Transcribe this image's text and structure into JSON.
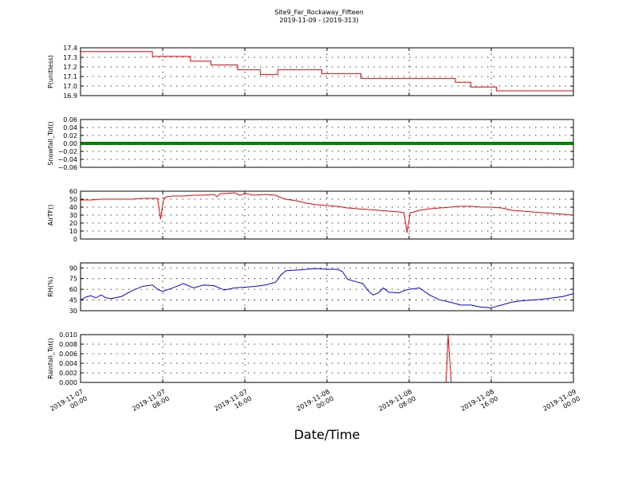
{
  "title_line1": "Site9_Far_Rockaway_Fifteen",
  "title_line2": "2019-11-09 - (2019-313)",
  "xlabel": "Date/Time",
  "x_ticks": [
    {
      "line1": "2019-11-07",
      "line2": "00:00"
    },
    {
      "line1": "2019-11-07",
      "line2": "08:00"
    },
    {
      "line1": "2019-11-07",
      "line2": "16:00"
    },
    {
      "line1": "2019-11-08",
      "line2": "00:00"
    },
    {
      "line1": "2019-11-08",
      "line2": "08:00"
    },
    {
      "line1": "2019-11-08",
      "line2": "16:00"
    },
    {
      "line1": "2019-11-09",
      "line2": "00:00"
    }
  ],
  "chart_data": [
    {
      "type": "line",
      "ylabel": "P(unitless)",
      "color": "#ff0000",
      "ylim": [
        16.9,
        17.4
      ],
      "yticks": [
        "16.9",
        "17.0",
        "17.1",
        "17.2",
        "17.3",
        "17.4"
      ],
      "x_range_hours": [
        0,
        48
      ],
      "x": [
        0,
        7,
        7,
        10.7,
        10.7,
        12.7,
        12.7,
        15.3,
        15.3,
        17.5,
        17.5,
        19.2,
        19.2,
        23.5,
        23.5,
        27.3,
        27.3,
        36.5,
        36.5,
        38,
        38,
        40.5,
        40.5,
        48
      ],
      "values": [
        17.36,
        17.36,
        17.31,
        17.31,
        17.26,
        17.26,
        17.22,
        17.22,
        17.17,
        17.17,
        17.12,
        17.12,
        17.17,
        17.17,
        17.13,
        17.13,
        17.08,
        17.08,
        17.04,
        17.04,
        16.99,
        16.99,
        16.95,
        16.95
      ]
    },
    {
      "type": "line",
      "ylabel": "Snowfall_Tot()",
      "color": "#008000",
      "ylim": [
        -0.06,
        0.06
      ],
      "yticks": [
        "−0.06",
        "−0.04",
        "−0.02",
        "0.00",
        "0.02",
        "0.04",
        "0.06"
      ],
      "x_range_hours": [
        0,
        48
      ],
      "x": [
        0,
        48
      ],
      "values": [
        0,
        0
      ]
    },
    {
      "type": "line",
      "ylabel": "AirTF()",
      "color": "#ff0000",
      "ylim": [
        0,
        60
      ],
      "yticks": [
        "0",
        "10",
        "20",
        "30",
        "40",
        "50",
        "60"
      ],
      "x_range_hours": [
        0,
        48
      ],
      "x": [
        0,
        1,
        2,
        3,
        4,
        5,
        6,
        7.5,
        7.8,
        8.1,
        8.4,
        9,
        10,
        11,
        12,
        13,
        13.3,
        13.6,
        14,
        15,
        15.5,
        16,
        17,
        18,
        19,
        19.5,
        20,
        21,
        22,
        23,
        24,
        25,
        26,
        27,
        28,
        29,
        30,
        31,
        31.5,
        31.8,
        32.1,
        32.5,
        33,
        34,
        35,
        36,
        37,
        38,
        39,
        40,
        41,
        42,
        43,
        44,
        45,
        46,
        47,
        48
      ],
      "values": [
        49,
        49,
        50,
        50,
        50,
        50,
        51,
        51,
        25,
        51,
        53,
        54,
        54,
        55,
        55,
        56,
        53,
        57,
        57,
        58,
        55,
        57,
        55,
        56,
        55,
        52,
        50,
        48,
        45,
        43,
        42,
        41,
        39,
        38,
        37,
        36,
        35,
        34,
        33,
        8,
        33,
        34,
        36,
        38,
        39,
        40,
        41,
        41,
        40,
        40,
        39,
        36,
        35,
        34,
        33,
        32,
        31,
        30
      ]
    },
    {
      "type": "line",
      "ylabel": "RH(%)",
      "color": "#0000ff",
      "ylim": [
        30,
        97
      ],
      "yticks": [
        "30",
        "45",
        "60",
        "75",
        "90"
      ],
      "x_range_hours": [
        0,
        48
      ],
      "x": [
        0,
        0.5,
        1,
        1.5,
        2,
        2.5,
        3,
        4,
        5,
        6,
        7,
        7.5,
        8,
        9,
        10,
        11,
        12,
        13,
        14,
        15,
        16,
        17,
        18,
        19,
        19.5,
        20,
        21,
        22,
        23,
        24,
        25,
        25.5,
        26,
        27,
        27.5,
        28,
        28.5,
        29,
        29.5,
        30,
        31,
        31.5,
        32,
        33,
        34,
        35,
        36,
        37,
        38,
        39,
        40,
        41,
        42,
        43,
        44,
        45,
        46,
        47,
        48
      ],
      "values": [
        45,
        49,
        51,
        48,
        52,
        48,
        47,
        50,
        58,
        64,
        66,
        60,
        57,
        62,
        68,
        62,
        66,
        65,
        59,
        62,
        63,
        64,
        66,
        70,
        80,
        86,
        87,
        88,
        89,
        88,
        88,
        85,
        74,
        70,
        68,
        58,
        52,
        55,
        62,
        56,
        55,
        58,
        60,
        62,
        52,
        45,
        42,
        38,
        38,
        35,
        34,
        38,
        42,
        44,
        45,
        46,
        48,
        50,
        54
      ]
    },
    {
      "type": "line",
      "ylabel": "Rainfall_Tot()",
      "color": "#ff0000",
      "ylim": [
        0,
        0.01
      ],
      "yticks": [
        "0.000",
        "0.002",
        "0.004",
        "0.006",
        "0.008",
        "0.010"
      ],
      "x_range_hours": [
        0,
        48
      ],
      "x": [
        0,
        35.6,
        35.8,
        36.1,
        48
      ],
      "values": [
        0,
        0,
        0.01,
        0,
        0
      ]
    }
  ]
}
